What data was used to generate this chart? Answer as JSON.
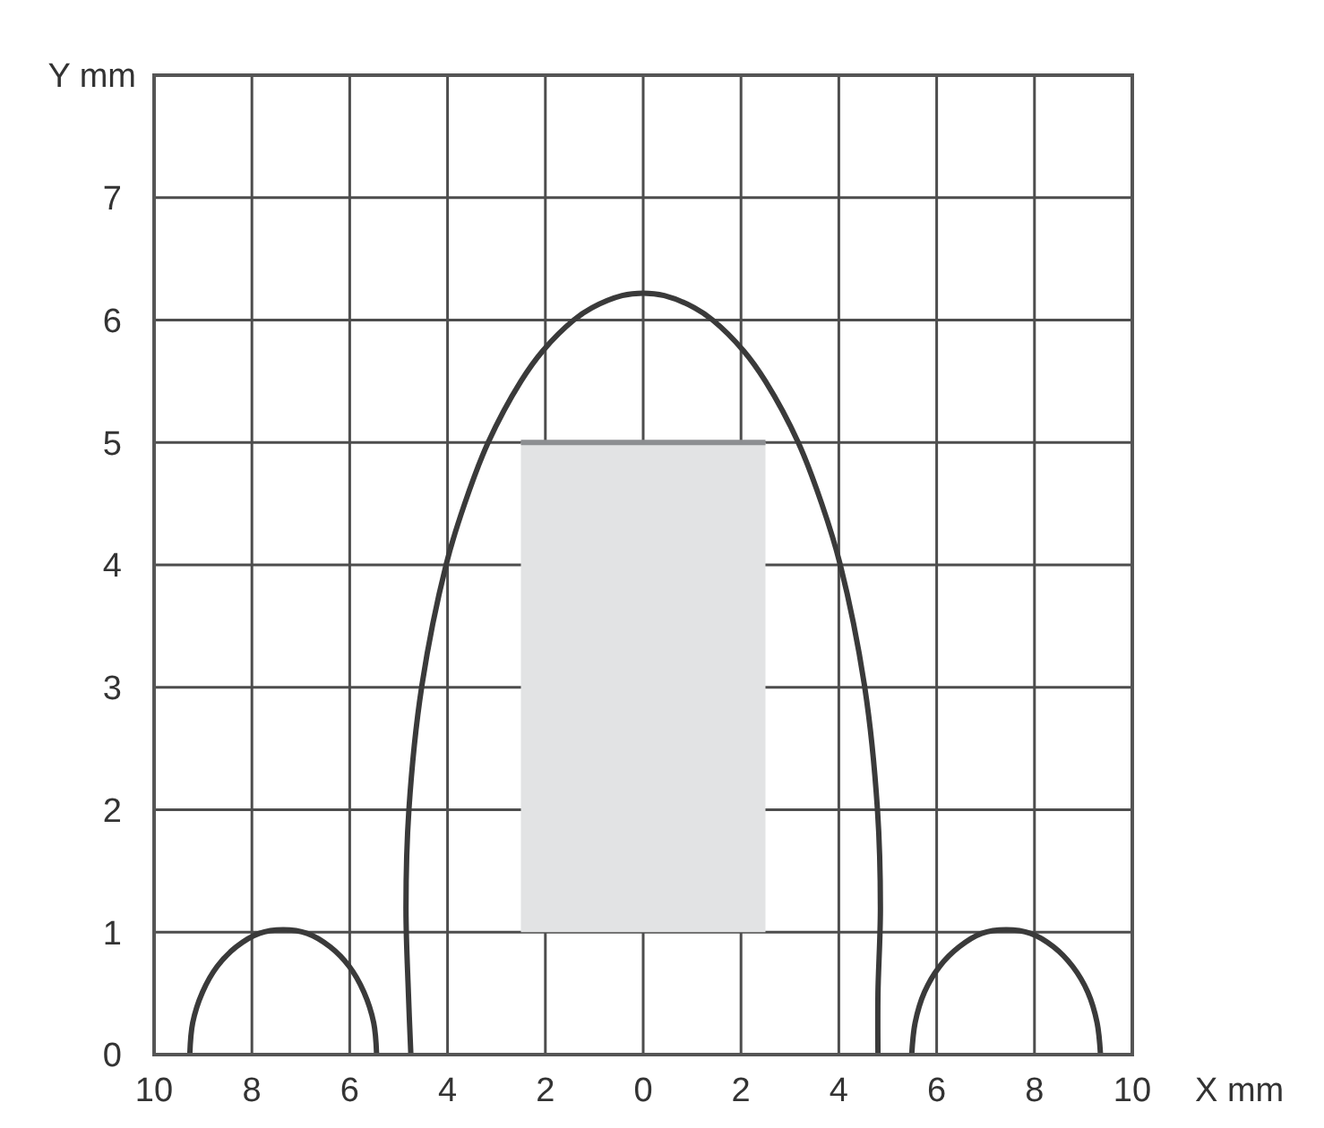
{
  "chart_data": {
    "type": "line",
    "xlabel": "X mm",
    "ylabel": "Y mm",
    "xlim": [
      -10,
      10
    ],
    "ylim": [
      0,
      8
    ],
    "xticks": [
      {
        "value": -10,
        "label": "10"
      },
      {
        "value": -8,
        "label": "8"
      },
      {
        "value": -6,
        "label": "6"
      },
      {
        "value": -4,
        "label": "4"
      },
      {
        "value": -2,
        "label": "2"
      },
      0,
      2,
      4,
      6,
      8,
      10
    ],
    "yticks": [
      0,
      1,
      2,
      3,
      4,
      5,
      6,
      7
    ],
    "grid": true,
    "series": [
      {
        "color": "#8c8e91",
        "x": [
          -2.5,
          2.5
        ],
        "values": [
          5,
          5
        ],
        "lower": [
          1,
          1
        ],
        "upper": [
          5,
          5
        ]
      },
      {
        "color": "#3a3a3a",
        "x": [
          -9.27,
          -9.21,
          -9.01,
          -8.71,
          -8.32,
          -7.85,
          -7.36,
          -6.87,
          -6.4,
          -6.01,
          -5.71,
          -5.51,
          -5.45
        ],
        "values": [
          0,
          0.26,
          0.51,
          0.72,
          0.88,
          0.99,
          1.02,
          0.99,
          0.88,
          0.72,
          0.51,
          0.26,
          0
        ]
      },
      {
        "color": "#3a3a3a",
        "x": [
          -4.75,
          -4.8,
          -4.85,
          -4.79,
          -4.53,
          -4.03,
          -3.65,
          -3.17,
          -2.5,
          -2.05,
          -1.42,
          -1.05,
          -0.43,
          0,
          0.43,
          1.05,
          1.42,
          2.05,
          2.5,
          3.17,
          3.65,
          4.03,
          4.53,
          4.79,
          4.85,
          4.8,
          4.8
        ],
        "values": [
          0,
          0.5,
          1.2,
          2,
          3,
          4,
          4.5,
          5,
          5.5,
          5.75,
          6,
          6.1,
          6.2,
          6.22,
          6.2,
          6.1,
          6,
          5.75,
          5.5,
          5,
          4.5,
          4,
          3,
          2,
          1.2,
          0.5,
          0
        ]
      },
      {
        "color": "#3a3a3a",
        "x": [
          5.49,
          5.56,
          5.75,
          6.06,
          6.46,
          6.92,
          7.42,
          7.92,
          8.39,
          8.78,
          9.09,
          9.28,
          9.35
        ],
        "values": [
          0,
          0.26,
          0.51,
          0.72,
          0.88,
          0.99,
          1.02,
          0.99,
          0.88,
          0.72,
          0.51,
          0.26,
          0
        ]
      }
    ]
  }
}
